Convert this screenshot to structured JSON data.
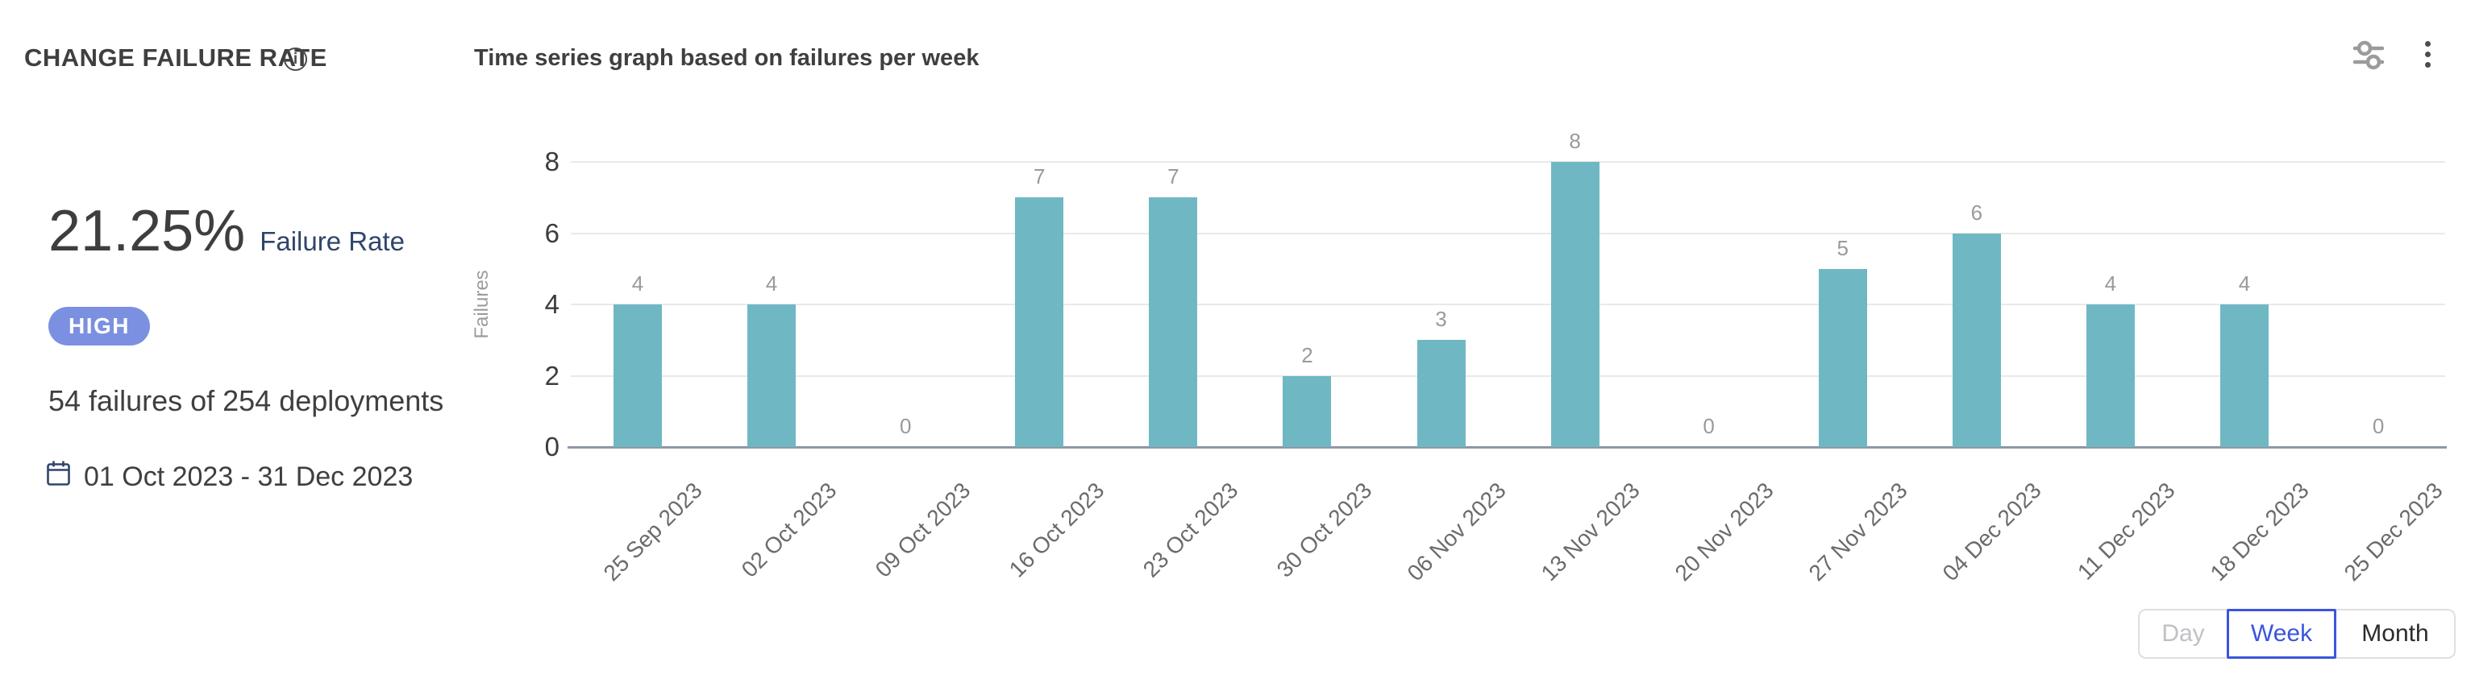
{
  "header": {
    "title": "CHANGE FAILURE RATE",
    "subtitle": "Time series graph based on failures per week"
  },
  "icons": {
    "info_glyph": "i",
    "info": "info-icon",
    "filter": "filter-sliders-icon",
    "menu": "kebab-menu-icon",
    "calendar": "calendar-icon"
  },
  "stats": {
    "rate_value": "21.25%",
    "rate_label": "Failure Rate",
    "severity_badge": "HIGH",
    "summary": "54 failures of 254 deployments",
    "date_range": "01 Oct 2023 - 31 Dec 2023"
  },
  "granularity": {
    "options": [
      {
        "label": "Day",
        "state": "disabled"
      },
      {
        "label": "Week",
        "state": "selected"
      },
      {
        "label": "Month",
        "state": "default"
      }
    ]
  },
  "chart_data": {
    "type": "bar",
    "title": "Time series graph based on failures per week",
    "xlabel": "",
    "ylabel": "Failures",
    "categories": [
      "25 Sep 2023",
      "02 Oct 2023",
      "09 Oct 2023",
      "16 Oct 2023",
      "23 Oct 2023",
      "30 Oct 2023",
      "06 Nov 2023",
      "13 Nov 2023",
      "20 Nov 2023",
      "27 Nov 2023",
      "04 Dec 2023",
      "11 Dec 2023",
      "18 Dec 2023",
      "25 Dec 2023"
    ],
    "values": [
      4,
      4,
      0,
      7,
      7,
      2,
      3,
      8,
      0,
      5,
      6,
      4,
      4,
      0
    ],
    "yticks": [
      0,
      2,
      4,
      6,
      8
    ],
    "ylim": [
      0,
      8
    ],
    "grid": true,
    "value_labels": true,
    "x_label_rotation": 45,
    "legend": "none",
    "bar_color": "#6FB8C3"
  },
  "colors": {
    "bar": "#6FB8C3",
    "badge_high": "#7B90E0",
    "accent_blue": "#3B55DB",
    "navy_text": "#30456B",
    "axis_line": "#8E98A8",
    "grid_line": "#E9E9E9"
  }
}
